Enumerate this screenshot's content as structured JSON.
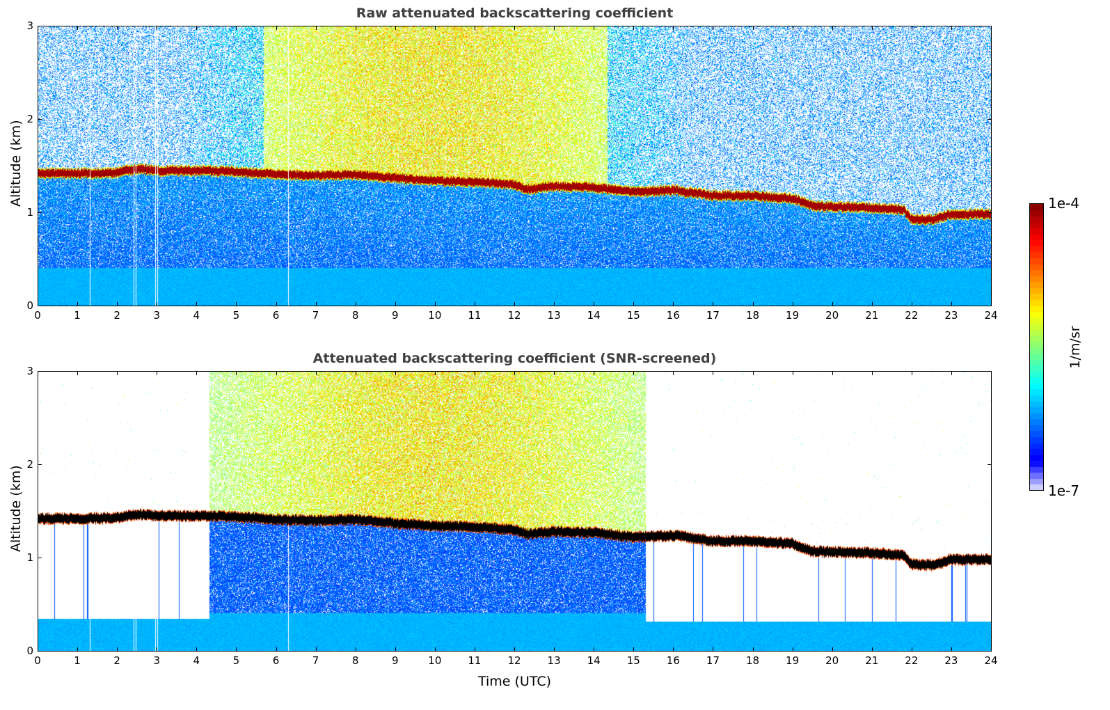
{
  "chart_data": [
    {
      "type": "heatmap",
      "title": "Raw attenuated backscattering coefficient",
      "xlabel": "",
      "ylabel": "Altitude (km)",
      "xlim": [
        0,
        24
      ],
      "ylim": [
        0,
        3
      ],
      "xticks": [
        "0",
        "1",
        "2",
        "3",
        "4",
        "5",
        "6",
        "7",
        "8",
        "9",
        "10",
        "11",
        "12",
        "13",
        "14",
        "15",
        "16",
        "17",
        "18",
        "19",
        "20",
        "21",
        "22",
        "23",
        "24"
      ],
      "yticks": [
        "0",
        "1",
        "2",
        "3"
      ],
      "screened": false
    },
    {
      "type": "heatmap",
      "title": "Attenuated backscattering coefficient (SNR-screened)",
      "xlabel": "Time (UTC)",
      "ylabel": "Altitude (km)",
      "xlim": [
        0,
        24
      ],
      "ylim": [
        0,
        3
      ],
      "xticks": [
        "0",
        "1",
        "2",
        "3",
        "4",
        "5",
        "6",
        "7",
        "8",
        "9",
        "10",
        "11",
        "12",
        "13",
        "14",
        "15",
        "16",
        "17",
        "18",
        "19",
        "20",
        "21",
        "22",
        "23",
        "24"
      ],
      "yticks": [
        "0",
        "1",
        "2",
        "3"
      ],
      "screened": true,
      "full_signal_window_hours": [
        4.3,
        15.3
      ]
    }
  ],
  "cloud_layer_altitude_km": {
    "time_h": [
      0,
      1,
      2,
      2.5,
      3,
      4,
      5,
      6,
      7,
      8,
      9,
      10,
      11,
      12,
      12.3,
      13,
      14,
      15,
      16,
      17,
      18,
      19,
      19.5,
      20,
      21,
      21.8,
      22,
      22.5,
      23,
      24
    ],
    "altitude": [
      1.42,
      1.42,
      1.43,
      1.47,
      1.45,
      1.45,
      1.44,
      1.41,
      1.4,
      1.41,
      1.37,
      1.34,
      1.33,
      1.3,
      1.25,
      1.28,
      1.27,
      1.22,
      1.24,
      1.18,
      1.18,
      1.15,
      1.07,
      1.06,
      1.05,
      1.03,
      0.93,
      0.92,
      0.98,
      0.98
    ]
  },
  "colorbar": {
    "label": "1/m/sr",
    "max_label": "1e-4",
    "min_label": "1e-7",
    "scale": "log",
    "range": [
      1e-07,
      0.0001
    ],
    "colormap": "jet"
  }
}
